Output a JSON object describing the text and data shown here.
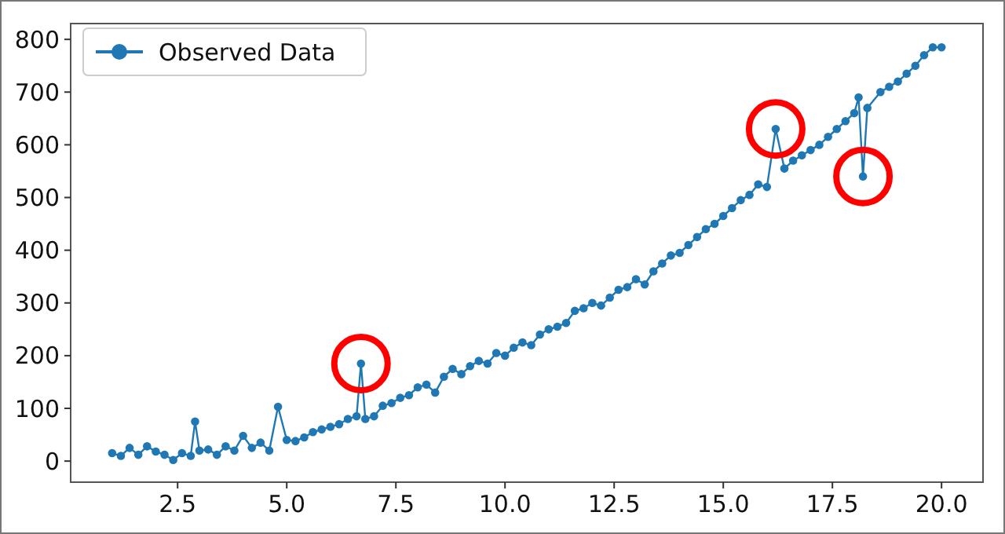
{
  "chart_data": {
    "type": "line",
    "xlim": [
      0.05,
      20.95
    ],
    "ylim": [
      -40,
      830
    ],
    "xticks": [
      {
        "value": 2.5,
        "label": "2.5"
      },
      {
        "value": 5,
        "label": "5.0"
      },
      {
        "value": 7.5,
        "label": "7.5"
      },
      {
        "value": 10,
        "label": "10.0"
      },
      {
        "value": 12.5,
        "label": "12.5"
      },
      {
        "value": 15,
        "label": "15.0"
      },
      {
        "value": 17.5,
        "label": "17.5"
      },
      {
        "value": 20,
        "label": "20.0"
      }
    ],
    "yticks": [
      0,
      100,
      200,
      300,
      400,
      500,
      600,
      700,
      800
    ],
    "legend": "top left",
    "marker": "circle",
    "grid": false,
    "series": [
      {
        "name": "Observed Data",
        "color": "#1f77b4",
        "x": [
          1.0,
          1.2,
          1.4,
          1.6,
          1.8,
          2.0,
          2.2,
          2.4,
          2.6,
          2.8,
          2.9,
          3.0,
          3.2,
          3.4,
          3.6,
          3.8,
          4.0,
          4.2,
          4.4,
          4.6,
          4.8,
          5.0,
          5.2,
          5.4,
          5.6,
          5.8,
          6.0,
          6.2,
          6.4,
          6.6,
          6.7,
          6.8,
          7.0,
          7.2,
          7.4,
          7.6,
          7.8,
          8.0,
          8.2,
          8.4,
          8.6,
          8.8,
          9.0,
          9.2,
          9.4,
          9.6,
          9.8,
          10.0,
          10.2,
          10.4,
          10.6,
          10.8,
          11.0,
          11.2,
          11.4,
          11.6,
          11.8,
          12.0,
          12.2,
          12.4,
          12.6,
          12.8,
          13.0,
          13.2,
          13.4,
          13.6,
          13.8,
          14.0,
          14.2,
          14.4,
          14.6,
          14.8,
          15.0,
          15.2,
          15.4,
          15.6,
          15.8,
          16.0,
          16.2,
          16.4,
          16.6,
          16.8,
          17.0,
          17.2,
          17.4,
          17.6,
          17.8,
          18.0,
          18.1,
          18.2,
          18.3,
          18.6,
          18.8,
          19.0,
          19.2,
          19.4,
          19.6,
          19.8,
          20.0
        ],
        "values": [
          15,
          10,
          25,
          12,
          28,
          18,
          12,
          2,
          15,
          10,
          75,
          20,
          22,
          12,
          28,
          20,
          48,
          25,
          35,
          20,
          103,
          40,
          38,
          45,
          55,
          60,
          65,
          70,
          80,
          85,
          185,
          80,
          85,
          105,
          110,
          120,
          125,
          140,
          145,
          130,
          160,
          175,
          165,
          180,
          190,
          185,
          205,
          200,
          215,
          225,
          220,
          240,
          250,
          255,
          262,
          285,
          290,
          300,
          295,
          310,
          325,
          330,
          345,
          335,
          360,
          375,
          390,
          395,
          410,
          425,
          440,
          450,
          465,
          480,
          495,
          505,
          525,
          520,
          630,
          555,
          570,
          580,
          590,
          600,
          615,
          630,
          645,
          660,
          690,
          540,
          670,
          700,
          710,
          720,
          735,
          750,
          770,
          785,
          785
        ]
      }
    ]
  }
}
